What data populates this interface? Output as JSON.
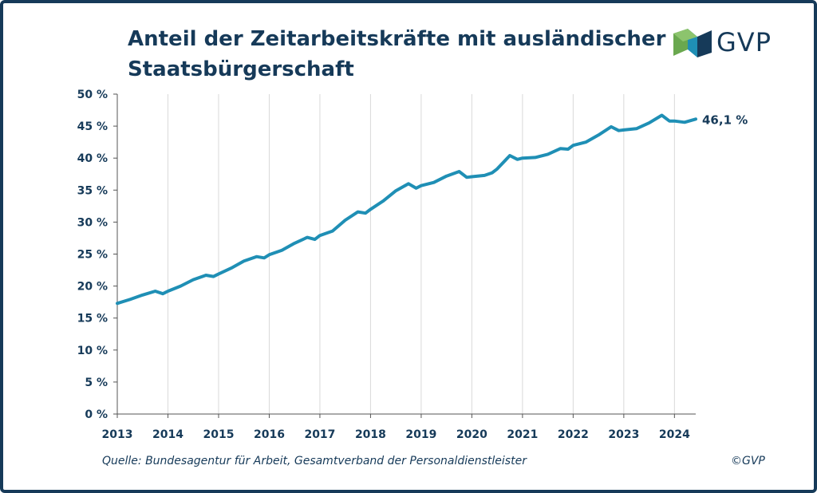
{
  "brand": {
    "name": "GVP",
    "color_dark": "#163a59",
    "color_green": "#6aa84f",
    "color_teal": "#1f8fb5"
  },
  "header": {
    "title": "Anteil der Zeitarbeitskräfte mit ausländischer Staatsbürgerschaft"
  },
  "footer": {
    "source": "Quelle: Bundesagentur für Arbeit, Gesamtverband der Personaldienstleister",
    "copyright": "©GVP"
  },
  "chart_data": {
    "type": "line",
    "title": "Anteil der Zeitarbeitskräfte mit ausländischer Staatsbürgerschaft",
    "xlabel": "",
    "ylabel": "",
    "xlim": [
      2013.0,
      2024.42
    ],
    "ylim": [
      0,
      50
    ],
    "yticks": [
      0,
      5,
      10,
      15,
      20,
      25,
      30,
      35,
      40,
      45,
      50
    ],
    "ytick_labels": [
      "0 %",
      "5 %",
      "10 %",
      "15 %",
      "20 %",
      "25 %",
      "30 %",
      "35 %",
      "40 %",
      "45 %",
      "50 %"
    ],
    "xticks": [
      2013,
      2014,
      2015,
      2016,
      2017,
      2018,
      2019,
      2020,
      2021,
      2022,
      2023,
      2024
    ],
    "xtick_labels": [
      "2013",
      "2014",
      "2015",
      "2016",
      "2017",
      "2018",
      "2019",
      "2020",
      "2021",
      "2022",
      "2023",
      "2024"
    ],
    "grid": {
      "vertical": true,
      "horizontal": false
    },
    "line_color": "#1f8fb5",
    "end_label": "46,1 %",
    "series": [
      {
        "x": [
          2013.0,
          2013.25,
          2013.5,
          2013.75,
          2013.9,
          2014.0,
          2014.25,
          2014.5,
          2014.75,
          2014.9,
          2015.0,
          2015.25,
          2015.5,
          2015.75,
          2015.9,
          2016.0,
          2016.25,
          2016.5,
          2016.75,
          2016.9,
          2017.0,
          2017.25,
          2017.5,
          2017.75,
          2017.9,
          2018.0,
          2018.25,
          2018.5,
          2018.75,
          2018.9,
          2019.0,
          2019.25,
          2019.5,
          2019.75,
          2019.9,
          2020.0,
          2020.25,
          2020.4,
          2020.5,
          2020.75,
          2020.9,
          2021.0,
          2021.25,
          2021.5,
          2021.75,
          2021.9,
          2022.0,
          2022.25,
          2022.5,
          2022.75,
          2022.9,
          2023.0,
          2023.25,
          2023.5,
          2023.75,
          2023.9,
          2024.0,
          2024.2,
          2024.42
        ],
        "y": [
          17.3,
          17.9,
          18.6,
          19.2,
          18.8,
          19.2,
          20.0,
          21.0,
          21.7,
          21.5,
          21.9,
          22.8,
          23.9,
          24.6,
          24.4,
          24.9,
          25.6,
          26.7,
          27.6,
          27.3,
          27.9,
          28.6,
          30.3,
          31.6,
          31.4,
          32.0,
          33.3,
          34.9,
          36.0,
          35.3,
          35.7,
          36.2,
          37.2,
          37.9,
          37.0,
          37.1,
          37.3,
          37.7,
          38.3,
          40.4,
          39.8,
          40.0,
          40.1,
          40.6,
          41.5,
          41.4,
          42.0,
          42.5,
          43.6,
          44.9,
          44.3,
          44.4,
          44.6,
          45.5,
          46.7,
          45.8,
          45.8,
          45.6,
          46.1
        ]
      }
    ]
  }
}
